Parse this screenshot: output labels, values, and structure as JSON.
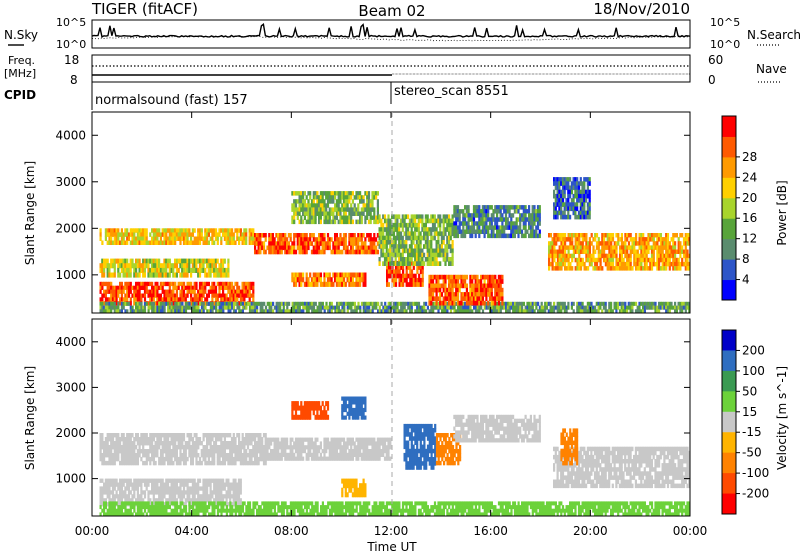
{
  "header": {
    "radar": "TIGER (fitACF)",
    "beam": "Beam 02",
    "date": "18/Nov/2010"
  },
  "noise_panel": {
    "left_label": "N.Sky",
    "right_label": "N.Search",
    "left_ticks": [
      "10^5",
      "10^0"
    ],
    "right_ticks": [
      "10^5",
      "10^0"
    ]
  },
  "freq_panel": {
    "left_label_1": "Freq.",
    "left_label_2": "[MHz]",
    "left_ticks": [
      "18",
      "8"
    ],
    "right_label": "Nave",
    "right_ticks": [
      "60",
      "0"
    ],
    "cpid_label": "CPID",
    "modes": [
      {
        "name": "normalsound (fast) 157",
        "start_hour": 0
      },
      {
        "name": "stereo_scan 8551",
        "start_hour": 11.8
      }
    ]
  },
  "x_axis": {
    "label": "Time UT",
    "ticks": [
      "00:00",
      "04:00",
      "08:00",
      "12:00",
      "16:00",
      "20:00",
      "00:00"
    ],
    "range_hours": [
      0,
      24
    ]
  },
  "y_axis": {
    "label": "Slant Range [km]",
    "ticks": [
      "1000",
      "2000",
      "3000",
      "4000"
    ],
    "range": [
      180,
      4500
    ]
  },
  "power_scale": {
    "title": "Power [dB]",
    "labels": [
      "4",
      "8",
      "12",
      "16",
      "20",
      "24",
      "28"
    ],
    "colors": [
      "#0000ff",
      "#2d55c8",
      "#5a8c6e",
      "#58a43a",
      "#a8d42c",
      "#ffd000",
      "#ff9a00",
      "#ff5a00",
      "#ff0000"
    ]
  },
  "velocity_scale": {
    "title": "Velocity [m s^-1]",
    "labels": [
      "200",
      "100",
      "50",
      "15",
      "-15",
      "-50",
      "-100",
      "-200"
    ],
    "colors": [
      "#0000c8",
      "#2f6ec0",
      "#3a9a52",
      "#6cd23a",
      "#c8c8c8",
      "#ffb400",
      "#ff8200",
      "#ff4a00",
      "#ff0000"
    ]
  },
  "chart_data": [
    {
      "type": "heatmap",
      "name": "power",
      "x_unit": "hour UT",
      "y_unit": "km",
      "value_unit": "dB",
      "xlim": [
        0,
        24
      ],
      "ylim": [
        180,
        4500
      ],
      "regions": [
        {
          "x0": 0.3,
          "x1": 6.5,
          "y0": 1650,
          "y1": 2000,
          "value": 20
        },
        {
          "x0": 6.5,
          "x1": 11.5,
          "y0": 1450,
          "y1": 1900,
          "value": 26
        },
        {
          "x0": 0.3,
          "x1": 5.5,
          "y0": 950,
          "y1": 1350,
          "value": 18
        },
        {
          "x0": 0.3,
          "x1": 6.5,
          "y0": 350,
          "y1": 850,
          "value": 27
        },
        {
          "x0": 8.0,
          "x1": 11.0,
          "y0": 750,
          "y1": 1050,
          "value": 24
        },
        {
          "x0": 11.8,
          "x1": 13.3,
          "y0": 750,
          "y1": 1300,
          "value": 27
        },
        {
          "x0": 8.0,
          "x1": 11.5,
          "y0": 2100,
          "y1": 2800,
          "value": 14
        },
        {
          "x0": 11.5,
          "x1": 14.5,
          "y0": 1200,
          "y1": 2300,
          "value": 14
        },
        {
          "x0": 14.5,
          "x1": 18.0,
          "y0": 1800,
          "y1": 2500,
          "value": 10
        },
        {
          "x0": 18.3,
          "x1": 24.0,
          "y0": 1100,
          "y1": 1900,
          "value": 22
        },
        {
          "x0": 18.5,
          "x1": 20.0,
          "y0": 2200,
          "y1": 3100,
          "value": 8
        },
        {
          "x0": 0.3,
          "x1": 24.0,
          "y0": 180,
          "y1": 420,
          "value": 12
        },
        {
          "x0": 13.5,
          "x1": 16.5,
          "y0": 350,
          "y1": 1000,
          "value": 26
        }
      ]
    },
    {
      "type": "heatmap",
      "name": "velocity",
      "x_unit": "hour UT",
      "y_unit": "km",
      "value_unit": "m s^-1",
      "xlim": [
        0,
        24
      ],
      "ylim": [
        180,
        4500
      ],
      "regions": [
        {
          "x0": 0.3,
          "x1": 7.0,
          "y0": 1300,
          "y1": 2000,
          "value": 0
        },
        {
          "x0": 0.3,
          "x1": 6.0,
          "y0": 400,
          "y1": 1000,
          "value": 0
        },
        {
          "x0": 7.0,
          "x1": 12.0,
          "y0": 1400,
          "y1": 1900,
          "value": 0
        },
        {
          "x0": 8.0,
          "x1": 9.5,
          "y0": 2300,
          "y1": 2700,
          "value": -150
        },
        {
          "x0": 10.0,
          "x1": 11.0,
          "y0": 2300,
          "y1": 2800,
          "value": 150
        },
        {
          "x0": 12.5,
          "x1": 13.8,
          "y0": 1200,
          "y1": 2200,
          "value": 150
        },
        {
          "x0": 13.8,
          "x1": 14.8,
          "y0": 1300,
          "y1": 2000,
          "value": -60
        },
        {
          "x0": 10.0,
          "x1": 11.0,
          "y0": 600,
          "y1": 1000,
          "value": -40
        },
        {
          "x0": 14.5,
          "x1": 18.0,
          "y0": 1800,
          "y1": 2400,
          "value": 0
        },
        {
          "x0": 18.5,
          "x1": 24.0,
          "y0": 800,
          "y1": 1700,
          "value": 0
        },
        {
          "x0": 18.8,
          "x1": 19.5,
          "y0": 1300,
          "y1": 2100,
          "value": -60
        },
        {
          "x0": 0.3,
          "x1": 24.0,
          "y0": 180,
          "y1": 500,
          "value": 30
        }
      ]
    }
  ]
}
